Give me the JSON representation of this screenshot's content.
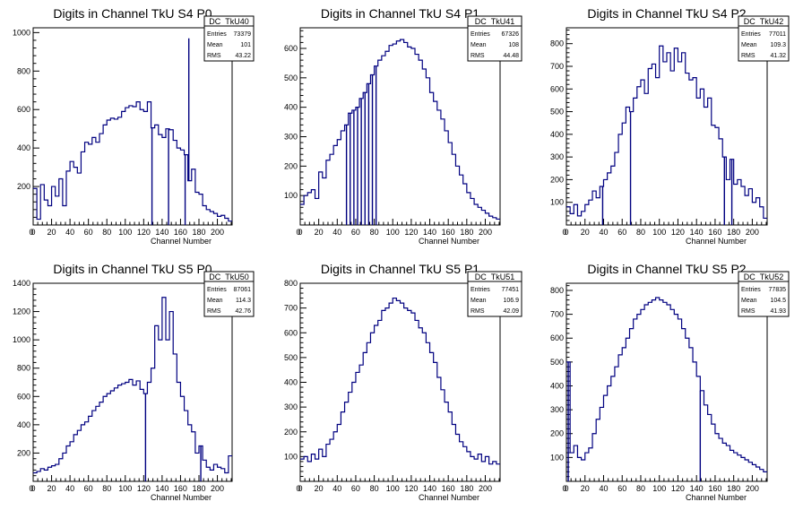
{
  "chart_data": [
    {
      "type": "step",
      "title": "Digits in Channel TkU S4 P0",
      "xlabel": "Channel Number",
      "ylabel": "",
      "xlim": [
        0,
        216
      ],
      "ylim": [
        0,
        1025
      ],
      "xticks": [
        0,
        20,
        40,
        60,
        80,
        100,
        120,
        140,
        160,
        180,
        200
      ],
      "yticks": [
        200,
        400,
        600,
        800,
        1000
      ],
      "stats": {
        "name": "DC_TkU40",
        "entries": "73379",
        "mean": "101",
        "rms": "43.22"
      },
      "series": [
        {
          "x": [
            0,
            4,
            8,
            12,
            16,
            20,
            24,
            28,
            32,
            36,
            40,
            44,
            48,
            52,
            56,
            60,
            64,
            68,
            72,
            76,
            80,
            84,
            88,
            92,
            96,
            100,
            104,
            108,
            112,
            116,
            120,
            124,
            128,
            132,
            136,
            140,
            144,
            148,
            152,
            156,
            160,
            164,
            168,
            172,
            176,
            180,
            184,
            188,
            192,
            196,
            200,
            204,
            208,
            212
          ],
          "values": [
            190,
            30,
            210,
            130,
            100,
            200,
            150,
            240,
            100,
            280,
            330,
            300,
            270,
            380,
            430,
            420,
            455,
            430,
            475,
            520,
            545,
            555,
            550,
            560,
            590,
            610,
            620,
            615,
            640,
            600,
            590,
            640,
            505,
            520,
            470,
            455,
            500,
            495,
            440,
            400,
            390,
            365,
            230,
            290,
            170,
            160,
            100,
            80,
            70,
            60,
            45,
            50,
            35,
            20
          ]
        },
        {
          "name": "spikes",
          "x": [
            129,
            147,
            165,
            169
          ],
          "values": [
            0,
            0,
            0,
            970
          ]
        }
      ]
    },
    {
      "type": "step",
      "title": "Digits in Channel TkU S4 P1",
      "xlabel": "Channel Number",
      "ylabel": "",
      "xlim": [
        0,
        216
      ],
      "ylim": [
        0,
        670
      ],
      "xticks": [
        0,
        20,
        40,
        60,
        80,
        100,
        120,
        140,
        160,
        180,
        200
      ],
      "yticks": [
        100,
        200,
        300,
        400,
        500,
        600
      ],
      "stats": {
        "name": "DC_TkU41",
        "entries": "67326",
        "mean": "108",
        "rms": "44.48"
      },
      "series": [
        {
          "x": [
            0,
            4,
            8,
            12,
            16,
            20,
            24,
            28,
            32,
            36,
            40,
            44,
            48,
            52,
            56,
            60,
            64,
            68,
            72,
            76,
            80,
            84,
            88,
            92,
            96,
            100,
            104,
            108,
            112,
            116,
            120,
            124,
            128,
            132,
            136,
            140,
            144,
            148,
            152,
            156,
            160,
            164,
            168,
            172,
            176,
            180,
            184,
            188,
            192,
            196,
            200,
            204,
            208,
            212
          ],
          "values": [
            70,
            100,
            110,
            120,
            90,
            180,
            160,
            220,
            240,
            270,
            290,
            320,
            340,
            380,
            390,
            400,
            430,
            450,
            480,
            510,
            540,
            560,
            575,
            590,
            610,
            615,
            625,
            630,
            620,
            605,
            600,
            580,
            560,
            530,
            500,
            450,
            420,
            390,
            360,
            320,
            280,
            240,
            200,
            170,
            140,
            110,
            90,
            70,
            60,
            50,
            40,
            30,
            25,
            20
          ]
        },
        {
          "name": "spikes",
          "x": [
            50,
            54,
            58,
            62,
            66,
            70,
            74,
            78,
            82
          ],
          "values": [
            0,
            0,
            0,
            0,
            0,
            0,
            0,
            0,
            0
          ]
        }
      ]
    },
    {
      "type": "step",
      "title": "Digits in Channel TkU S4 P2",
      "xlabel": "Channel Number",
      "ylabel": "",
      "xlim": [
        0,
        216
      ],
      "ylim": [
        0,
        870
      ],
      "xticks": [
        0,
        20,
        40,
        60,
        80,
        100,
        120,
        140,
        160,
        180,
        200
      ],
      "yticks": [
        100,
        200,
        300,
        400,
        500,
        600,
        700,
        800
      ],
      "stats": {
        "name": "DC_TkU42",
        "entries": "77011",
        "mean": "109.3",
        "rms": "41.32"
      },
      "series": [
        {
          "x": [
            0,
            4,
            8,
            12,
            16,
            20,
            24,
            28,
            32,
            36,
            40,
            44,
            48,
            52,
            56,
            60,
            64,
            68,
            72,
            76,
            80,
            84,
            88,
            92,
            96,
            100,
            104,
            108,
            112,
            116,
            120,
            124,
            128,
            132,
            136,
            140,
            144,
            148,
            152,
            156,
            160,
            164,
            168,
            172,
            176,
            180,
            184,
            188,
            192,
            196,
            200,
            204,
            208,
            212
          ],
          "values": [
            80,
            50,
            90,
            40,
            60,
            90,
            110,
            150,
            120,
            170,
            200,
            230,
            260,
            320,
            400,
            450,
            520,
            500,
            560,
            610,
            640,
            580,
            690,
            710,
            650,
            790,
            720,
            760,
            680,
            780,
            720,
            760,
            670,
            640,
            650,
            560,
            600,
            520,
            560,
            440,
            430,
            380,
            300,
            200,
            290,
            180,
            200,
            170,
            130,
            160,
            100,
            120,
            80,
            30
          ]
        },
        {
          "name": "spikes",
          "x": [
            39,
            69,
            170,
            178
          ],
          "values": [
            0,
            0,
            0,
            0
          ]
        }
      ]
    },
    {
      "type": "step",
      "title": "Digits in Channel TkU S5 P0",
      "xlabel": "Channel Number",
      "ylabel": "",
      "xlim": [
        0,
        216
      ],
      "ylim": [
        0,
        1400
      ],
      "xticks": [
        0,
        20,
        40,
        60,
        80,
        100,
        120,
        140,
        160,
        180,
        200
      ],
      "yticks": [
        200,
        400,
        600,
        800,
        1000,
        1200,
        1400
      ],
      "stats": {
        "name": "DC_TkU50",
        "entries": "87061",
        "mean": "114.3",
        "rms": "42.76"
      },
      "series": [
        {
          "x": [
            0,
            4,
            8,
            12,
            16,
            20,
            24,
            28,
            32,
            36,
            40,
            44,
            48,
            52,
            56,
            60,
            64,
            68,
            72,
            76,
            80,
            84,
            88,
            92,
            96,
            100,
            104,
            108,
            112,
            116,
            120,
            124,
            128,
            132,
            136,
            140,
            144,
            148,
            152,
            156,
            160,
            164,
            168,
            172,
            176,
            180,
            184,
            188,
            192,
            196,
            200,
            204,
            208,
            212
          ],
          "values": [
            60,
            70,
            90,
            80,
            100,
            110,
            120,
            160,
            200,
            250,
            280,
            330,
            360,
            400,
            420,
            460,
            500,
            530,
            560,
            600,
            620,
            640,
            660,
            680,
            690,
            700,
            720,
            680,
            710,
            650,
            620,
            700,
            800,
            1100,
            1000,
            1300,
            1000,
            1200,
            900,
            700,
            600,
            500,
            400,
            350,
            200,
            250,
            150,
            100,
            80,
            120,
            100,
            90,
            60,
            180
          ]
        },
        {
          "name": "spikes",
          "x": [
            122,
            182
          ],
          "values": [
            0,
            0
          ]
        }
      ]
    },
    {
      "type": "step",
      "title": "Digits in Channel TkU S5 P1",
      "xlabel": "Channel Number",
      "ylabel": "",
      "xlim": [
        0,
        216
      ],
      "ylim": [
        0,
        800
      ],
      "xticks": [
        0,
        20,
        40,
        60,
        80,
        100,
        120,
        140,
        160,
        180,
        200
      ],
      "yticks": [
        100,
        200,
        300,
        400,
        500,
        600,
        700,
        800
      ],
      "stats": {
        "name": "DC_TkU51",
        "entries": "77451",
        "mean": "106.9",
        "rms": "42.09"
      },
      "series": [
        {
          "x": [
            0,
            4,
            8,
            12,
            16,
            20,
            24,
            28,
            32,
            36,
            40,
            44,
            48,
            52,
            56,
            60,
            64,
            68,
            72,
            76,
            80,
            84,
            88,
            92,
            96,
            100,
            104,
            108,
            112,
            116,
            120,
            124,
            128,
            132,
            136,
            140,
            144,
            148,
            152,
            156,
            160,
            164,
            168,
            172,
            176,
            180,
            184,
            188,
            192,
            196,
            200,
            204,
            208,
            212
          ],
          "values": [
            90,
            100,
            80,
            110,
            90,
            130,
            100,
            150,
            170,
            200,
            230,
            280,
            320,
            360,
            400,
            440,
            470,
            520,
            560,
            600,
            630,
            650,
            690,
            700,
            720,
            740,
            730,
            720,
            700,
            690,
            680,
            650,
            620,
            600,
            560,
            520,
            480,
            420,
            370,
            320,
            280,
            230,
            190,
            160,
            140,
            120,
            100,
            90,
            110,
            80,
            100,
            70,
            80,
            70
          ]
        }
      ]
    },
    {
      "type": "step",
      "title": "Digits in Channel TkU S5 P2",
      "xlabel": "Channel Number",
      "ylabel": "",
      "xlim": [
        0,
        216
      ],
      "ylim": [
        0,
        830
      ],
      "xticks": [
        0,
        20,
        40,
        60,
        80,
        100,
        120,
        140,
        160,
        180,
        200
      ],
      "yticks": [
        100,
        200,
        300,
        400,
        500,
        600,
        700,
        800
      ],
      "stats": {
        "name": "DC_TkU52",
        "entries": "77835",
        "mean": "104.5",
        "rms": "41.93"
      },
      "series": [
        {
          "x": [
            0,
            4,
            8,
            12,
            16,
            20,
            24,
            28,
            32,
            36,
            40,
            44,
            48,
            52,
            56,
            60,
            64,
            68,
            72,
            76,
            80,
            84,
            88,
            92,
            96,
            100,
            104,
            108,
            112,
            116,
            120,
            124,
            128,
            132,
            136,
            140,
            144,
            148,
            152,
            156,
            160,
            164,
            168,
            172,
            176,
            180,
            184,
            188,
            192,
            196,
            200,
            204,
            208,
            212
          ],
          "values": [
            500,
            120,
            150,
            100,
            90,
            120,
            140,
            200,
            260,
            310,
            360,
            400,
            440,
            480,
            530,
            560,
            600,
            640,
            680,
            700,
            720,
            740,
            750,
            760,
            770,
            760,
            750,
            740,
            720,
            700,
            680,
            640,
            600,
            560,
            500,
            440,
            380,
            320,
            280,
            240,
            200,
            180,
            160,
            150,
            130,
            120,
            110,
            100,
            90,
            80,
            70,
            60,
            50,
            40
          ]
        },
        {
          "name": "spikes",
          "x": [
            2,
            144
          ],
          "values": [
            0,
            0
          ]
        }
      ]
    }
  ],
  "colors": {
    "line": "#000080",
    "axis": "#000000"
  }
}
